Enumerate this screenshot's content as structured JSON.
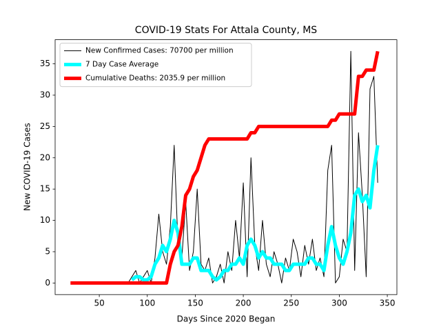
{
  "chart_data": {
    "type": "line",
    "title": "COVID-19 Stats For Attala County, MS",
    "x_label": "Days Since 2020 Began",
    "y_label": "New COVID-19 Cases",
    "x": [
      20,
      24,
      28,
      32,
      36,
      40,
      44,
      48,
      52,
      56,
      60,
      64,
      68,
      72,
      76,
      80,
      84,
      88,
      92,
      96,
      100,
      104,
      108,
      112,
      116,
      120,
      124,
      128,
      132,
      136,
      140,
      144,
      148,
      152,
      156,
      160,
      164,
      168,
      172,
      176,
      180,
      184,
      188,
      192,
      196,
      200,
      204,
      208,
      212,
      216,
      220,
      224,
      228,
      232,
      236,
      240,
      244,
      248,
      252,
      256,
      260,
      264,
      268,
      272,
      276,
      280,
      284,
      288,
      292,
      296,
      300,
      304,
      308,
      312,
      316,
      320,
      324,
      328,
      332,
      336,
      340
    ],
    "series": [
      {
        "name": "New Confirmed Cases: 70700 per million",
        "color": "#000000",
        "linewidth": 1,
        "values": [
          null,
          null,
          null,
          null,
          null,
          null,
          null,
          null,
          null,
          null,
          null,
          null,
          null,
          null,
          null,
          0,
          1,
          2,
          0,
          1,
          2,
          0,
          4,
          11,
          5,
          3,
          9,
          22,
          6,
          4,
          13,
          2,
          5,
          15,
          3,
          2,
          4,
          0,
          1,
          3,
          0,
          5,
          2,
          10,
          4,
          16,
          1,
          20,
          6,
          2,
          10,
          3,
          1,
          5,
          3,
          0,
          4,
          2,
          7,
          5,
          1,
          6,
          3,
          7,
          2,
          4,
          1,
          18,
          22,
          0,
          1,
          7,
          5,
          37,
          2,
          24,
          14,
          1,
          31,
          33,
          16
        ]
      },
      {
        "name": "7 Day Case Average",
        "color": "#00ffff",
        "linewidth": 5,
        "values": [
          null,
          null,
          null,
          null,
          null,
          null,
          null,
          null,
          null,
          null,
          null,
          null,
          null,
          null,
          null,
          null,
          0.5,
          1,
          1,
          0.5,
          0.5,
          1,
          3,
          4,
          6,
          5,
          7,
          10,
          8,
          3,
          3,
          3,
          4,
          4,
          2,
          2,
          2,
          1,
          0.5,
          1,
          2,
          2,
          3,
          3,
          4,
          3,
          6,
          7,
          6,
          4,
          5,
          4,
          4,
          3,
          3,
          3,
          2,
          2,
          3,
          3,
          3,
          3,
          4,
          4,
          3,
          3,
          2,
          6,
          9,
          6,
          4,
          3,
          5,
          8,
          14,
          15,
          13,
          14,
          12,
          18,
          22
        ]
      },
      {
        "name": "Cumulative Deaths: 2035.9 per million",
        "color": "#ff0000",
        "linewidth": 5,
        "values": [
          0,
          0,
          0,
          0,
          0,
          0,
          0,
          0,
          0,
          0,
          0,
          0,
          0,
          0,
          0,
          0,
          0,
          0,
          0,
          0,
          0,
          0,
          0,
          0,
          0,
          0,
          3,
          5,
          6,
          9,
          14,
          15,
          17,
          18,
          20,
          22,
          23,
          23,
          23,
          23,
          23,
          23,
          23,
          23,
          23,
          23,
          23,
          24,
          24,
          25,
          25,
          25,
          25,
          25,
          25,
          25,
          25,
          25,
          25,
          25,
          25,
          25,
          25,
          25,
          25,
          25,
          25,
          25,
          26,
          26,
          27,
          27,
          27,
          27,
          27,
          33,
          33,
          34,
          34,
          34,
          37
        ]
      }
    ],
    "xlim": [
      4,
      360
    ],
    "xticks": [
      50,
      100,
      150,
      200,
      250,
      300,
      350
    ],
    "ylim": [
      -1.85,
      38.85
    ],
    "yticks": [
      0,
      5,
      10,
      15,
      20,
      25,
      30,
      35
    ],
    "legend": "upper-left",
    "grid": false
  }
}
